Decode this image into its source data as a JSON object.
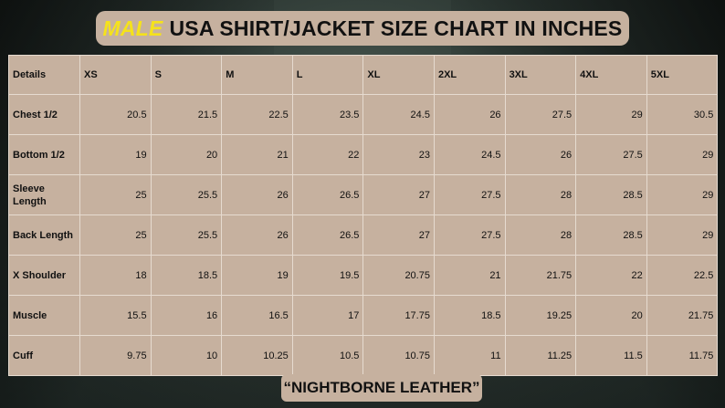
{
  "title": {
    "accent": "MALE",
    "text": "USA SHIRT/JACKET SIZE CHART IN INCHES"
  },
  "table": {
    "headers": [
      "Details",
      "XS",
      "S",
      "M",
      "L",
      "XL",
      "2XL",
      "3XL",
      "4XL",
      "5XL"
    ],
    "rows": [
      {
        "label": "Chest 1/2",
        "values": [
          "20.5",
          "21.5",
          "22.5",
          "23.5",
          "24.5",
          "26",
          "27.5",
          "29",
          "30.5"
        ]
      },
      {
        "label": "Bottom 1/2",
        "values": [
          "19",
          "20",
          "21",
          "22",
          "23",
          "24.5",
          "26",
          "27.5",
          "29"
        ]
      },
      {
        "label": "Sleeve Length",
        "values": [
          "25",
          "25.5",
          "26",
          "26.5",
          "27",
          "27.5",
          "28",
          "28.5",
          "29"
        ]
      },
      {
        "label": "Back Length",
        "values": [
          "25",
          "25.5",
          "26",
          "26.5",
          "27",
          "27.5",
          "28",
          "28.5",
          "29"
        ]
      },
      {
        "label": "X Shoulder",
        "values": [
          "18",
          "18.5",
          "19",
          "19.5",
          "20.75",
          "21",
          "21.75",
          "22",
          "22.5"
        ]
      },
      {
        "label": "Muscle",
        "values": [
          "15.5",
          "16",
          "16.5",
          "17",
          "17.75",
          "18.5",
          "19.25",
          "20",
          "21.75"
        ]
      },
      {
        "label": "Cuff",
        "values": [
          "9.75",
          "10",
          "10.25",
          "10.5",
          "10.75",
          "11",
          "11.25",
          "11.5",
          "11.75"
        ]
      }
    ]
  },
  "footer": {
    "brand": "“NIGHTBORNE LEATHER”"
  },
  "colors": {
    "panel": "#c6b19f",
    "accent": "#f5e21b",
    "background": "#2a3430"
  }
}
